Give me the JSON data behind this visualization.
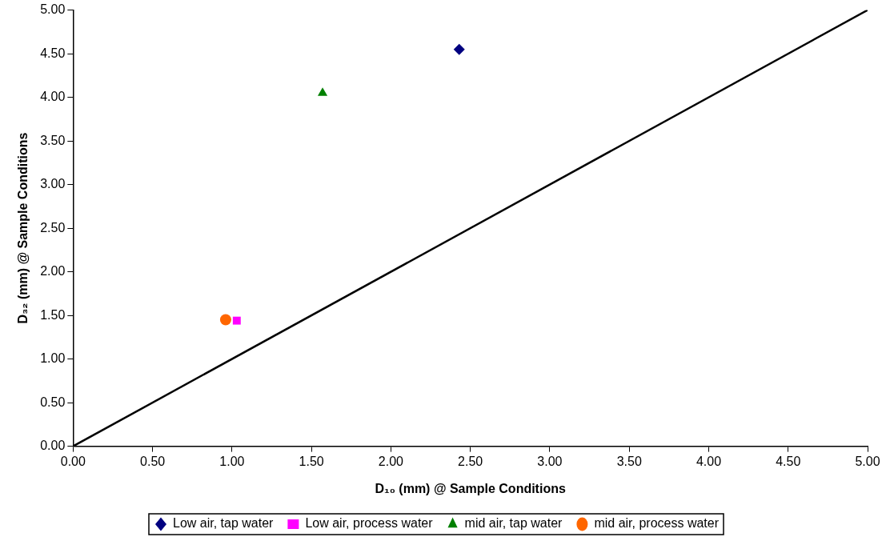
{
  "chart_data": {
    "type": "scatter",
    "xlabel": "D₁₀ (mm) @ Sample Conditions",
    "ylabel": "D₃₂ (mm) @ Sample Conditions",
    "xlim": [
      0,
      5
    ],
    "ylim": [
      0,
      5
    ],
    "xticks": [
      {
        "value": 0,
        "label": "0.00"
      },
      {
        "value": 0.5,
        "label": "0.50"
      },
      {
        "value": 1,
        "label": "1.00"
      },
      {
        "value": 1.5,
        "label": "1.50"
      },
      {
        "value": 2,
        "label": "2.00"
      },
      {
        "value": 2.5,
        "label": "2.50"
      },
      {
        "value": 3,
        "label": "3.00"
      },
      {
        "value": 3.5,
        "label": "3.50"
      },
      {
        "value": 4,
        "label": "4.00"
      },
      {
        "value": 4.5,
        "label": "4.50"
      },
      {
        "value": 5,
        "label": "5.00"
      }
    ],
    "yticks": [
      {
        "value": 0,
        "label": "0.00"
      },
      {
        "value": 0.5,
        "label": "0.50"
      },
      {
        "value": 1,
        "label": "1.00"
      },
      {
        "value": 1.5,
        "label": "1.50"
      },
      {
        "value": 2,
        "label": "2.00"
      },
      {
        "value": 2.5,
        "label": "2.50"
      },
      {
        "value": 3,
        "label": "3.00"
      },
      {
        "value": 3.5,
        "label": "3.50"
      },
      {
        "value": 4,
        "label": "4.00"
      },
      {
        "value": 4.5,
        "label": "4.50"
      },
      {
        "value": 5,
        "label": "5.00"
      }
    ],
    "grid": false,
    "legend": "bottom",
    "series": [
      {
        "name": "Low air, tap water",
        "color": "#000080",
        "marker": "diamond",
        "x": [
          2.43
        ],
        "values": [
          4.55
        ]
      },
      {
        "name": "Low air, process water",
        "color": "#ff00ff",
        "marker": "square",
        "x": [
          1.03
        ],
        "values": [
          1.44
        ]
      },
      {
        "name": "mid air, tap water",
        "color": "#008000",
        "marker": "triangle",
        "x": [
          1.57
        ],
        "values": [
          4.05
        ]
      },
      {
        "name": "mid air, process water",
        "color": "#ff6600",
        "marker": "circle",
        "x": [
          0.96
        ],
        "values": [
          1.45
        ]
      },
      {
        "type": "line",
        "color": "#000000",
        "marker": "none",
        "x": [
          0,
          5
        ],
        "values": [
          0,
          5
        ]
      }
    ]
  }
}
